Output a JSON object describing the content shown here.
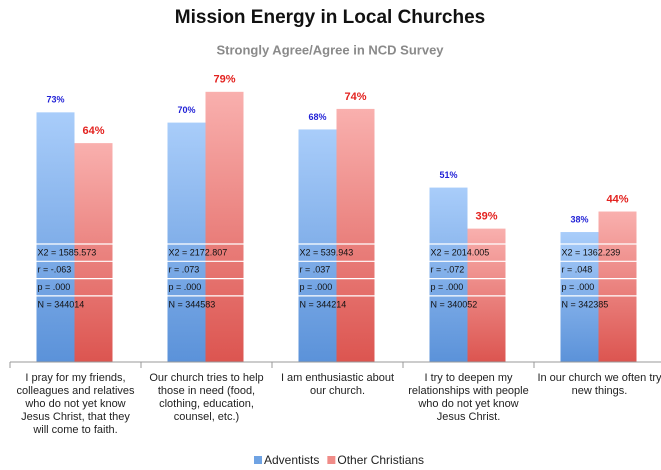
{
  "chart_data": {
    "type": "bar",
    "title": "Mission Energy in Local Churches",
    "subtitle": "Strongly Agree/Agree in NCD Survey",
    "categories": [
      "I pray for my friends, colleagues and relatives who do not yet know Jesus Christ, that they will come to faith.",
      "Our church tries to help those in need (food, clothing, education, counsel, etc.)",
      "I am enthusiastic about our church.",
      "I try to deepen my relationships with people who do not yet know Jesus Christ.",
      "In our church we often try new things."
    ],
    "series": [
      {
        "name": "Adventists",
        "color": "#6fa3e3",
        "label_color": "#1f1fd6",
        "values": [
          73,
          70,
          68,
          51,
          38
        ],
        "value_labels": [
          "73%",
          "70%",
          "68%",
          "51%",
          "38%"
        ]
      },
      {
        "name": "Other Christians",
        "color": "#f08c88",
        "label_color": "#e3221f",
        "values": [
          64,
          79,
          74,
          39,
          44
        ],
        "value_labels": [
          "64%",
          "79%",
          "74%",
          "39%",
          "44%"
        ]
      }
    ],
    "stats": [
      [
        "X2 = 1585.573",
        "r = -.063",
        "p = .000",
        "N = 344014"
      ],
      [
        "X2 = 2172.807",
        "r = .073",
        "p = .000",
        "N = 344583"
      ],
      [
        "X2 = 539.943",
        "r = .037",
        "p = .000",
        "N = 344214"
      ],
      [
        "X2 = 2014.005",
        "r = -.072",
        "p = .000",
        "N = 340052"
      ],
      [
        "X2 = 1362.239",
        "r = .048",
        "p = .000",
        "N = 342385"
      ]
    ],
    "ylim": [
      0,
      100
    ],
    "legend": "bottom"
  }
}
